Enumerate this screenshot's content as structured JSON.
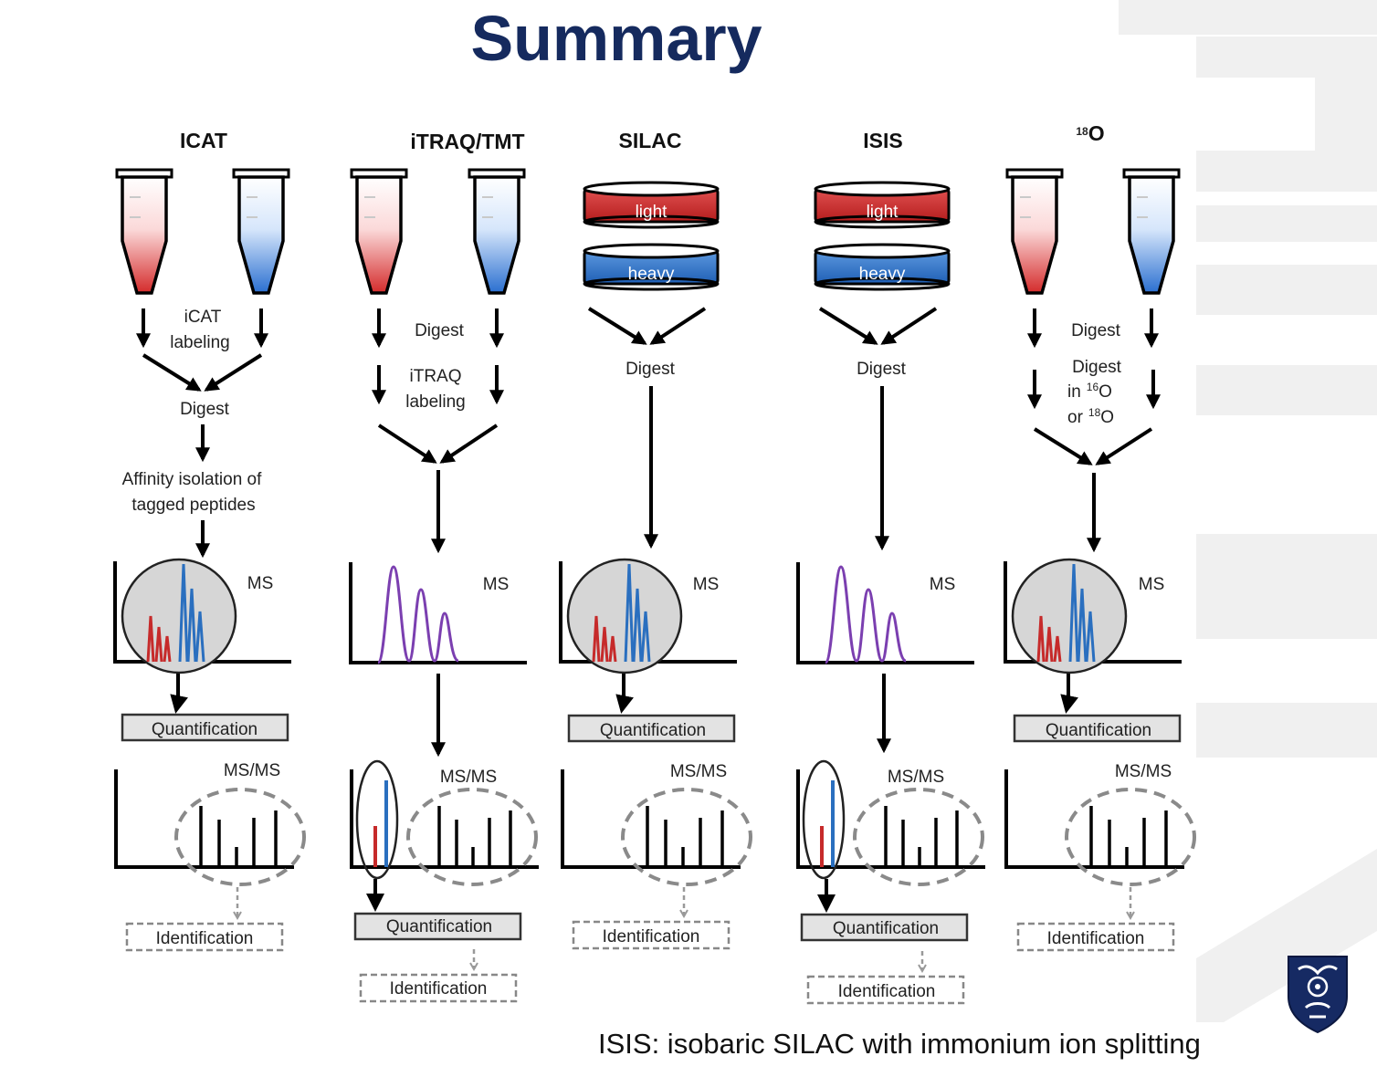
{
  "title": "Summary",
  "footnote": "ISIS: isobaric SILAC with immonium ion splitting",
  "colors": {
    "title": "#152a5e",
    "red": "#c62a2a",
    "blue": "#2a6fbf",
    "purple": "#7b3fb0"
  },
  "columns": {
    "icat": {
      "header": "ICAT",
      "step_labeling_1": "iCAT",
      "step_labeling_2": "labeling",
      "step_digest": "Digest",
      "step_affinity_1": "Affinity isolation of",
      "step_affinity_2": "tagged peptides",
      "ms": "MS",
      "quant": "Quantification",
      "msms": "MS/MS",
      "ident": "Identification"
    },
    "itraq": {
      "header_a": "iTRAQ",
      "header_b": "/TMT",
      "step_digest": "Digest",
      "step_labeling_1": "iTRAQ",
      "step_labeling_2": "labeling",
      "ms": "MS",
      "msms": "MS/MS",
      "quant": "Quantification",
      "ident": "Identification"
    },
    "silac": {
      "header": "SILAC",
      "dish_light": "light",
      "dish_heavy": "heavy",
      "step_digest": "Digest",
      "ms": "MS",
      "quant": "Quantification",
      "msms": "MS/MS",
      "ident": "Identification"
    },
    "isis": {
      "header": "ISIS",
      "dish_light": "light",
      "dish_heavy": "heavy",
      "step_digest": "Digest",
      "ms": "MS",
      "msms": "MS/MS",
      "quant": "Quantification",
      "ident": "Identification"
    },
    "o18": {
      "header_sup": "18",
      "header": "O",
      "step_digest": "Digest",
      "step_digest2": "Digest",
      "in": "in",
      "sup16": "16",
      "o_a": "O",
      "or": "or",
      "sup18": "18",
      "o_b": "O",
      "ms": "MS",
      "quant": "Quantification",
      "msms": "MS/MS",
      "ident": "Identification"
    }
  }
}
